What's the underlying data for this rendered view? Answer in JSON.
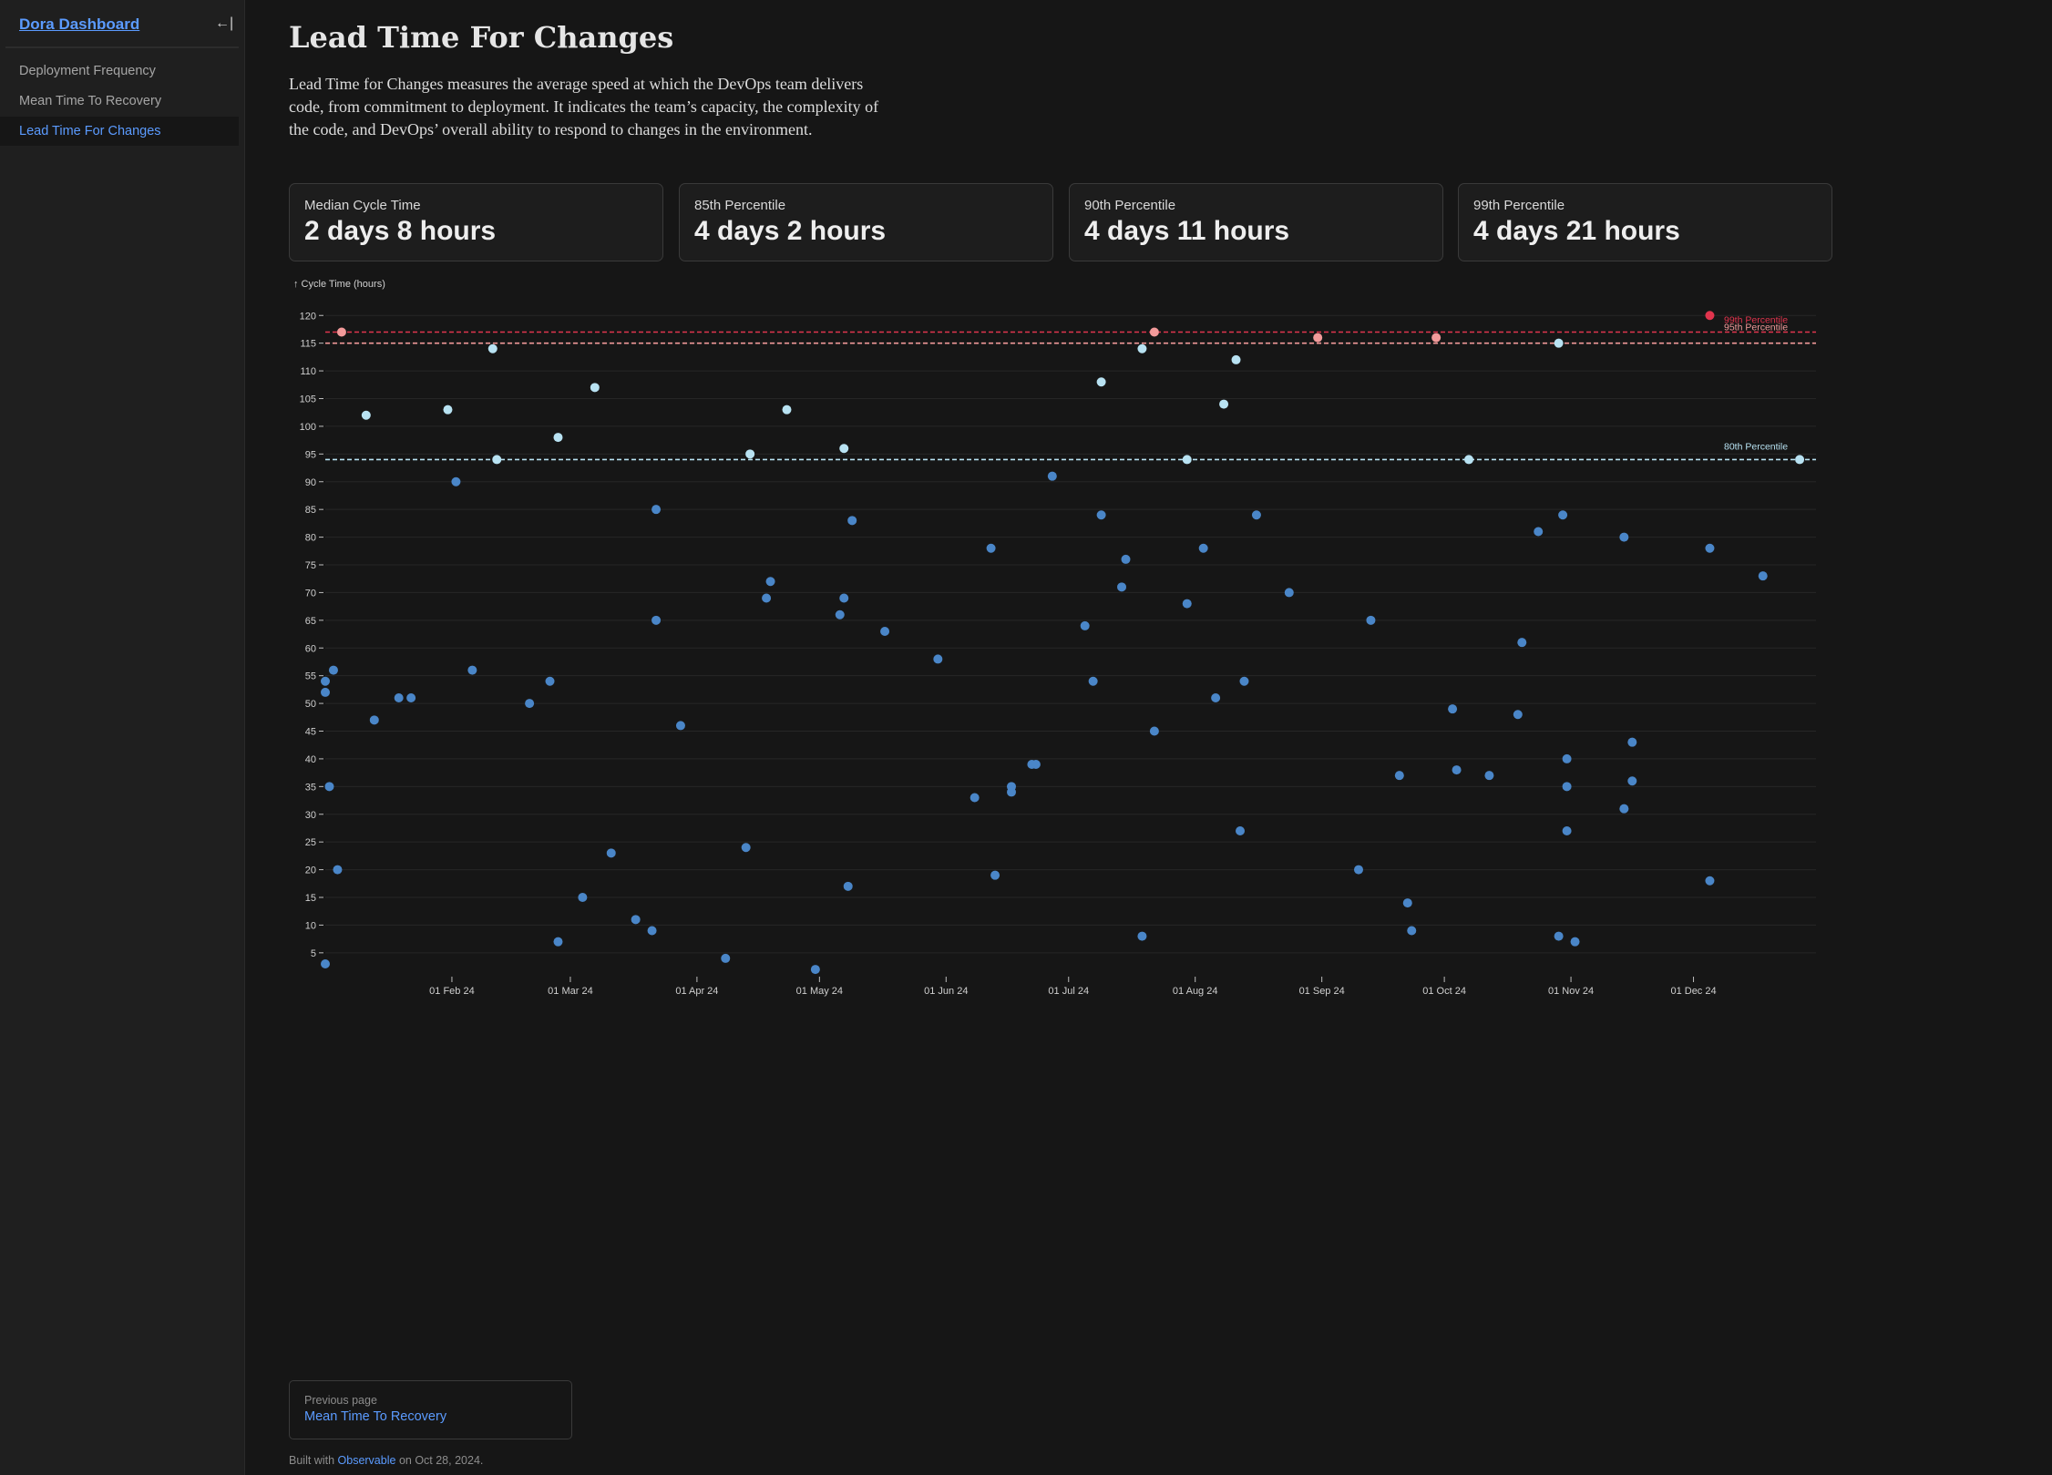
{
  "sidebar": {
    "brand": "Dora Dashboard",
    "collapse_icon": "←|",
    "items": [
      {
        "label": "Deployment Frequency",
        "active": false
      },
      {
        "label": "Mean Time To Recovery",
        "active": false
      },
      {
        "label": "Lead Time For Changes",
        "active": true
      }
    ]
  },
  "page": {
    "title": "Lead Time For Changes",
    "description": "Lead Time for Changes measures the average speed at which the DevOps team delivers code, from commitment to deployment. It indicates the team’s capacity, the complexity of the code, and DevOps’ overall ability to respond to changes in the environment."
  },
  "cards": [
    {
      "label": "Median Cycle Time",
      "value": "2 days 8 hours"
    },
    {
      "label": "85th Percentile",
      "value": "4 days 2 hours"
    },
    {
      "label": "90th Percentile",
      "value": "4 days 11 hours"
    },
    {
      "label": "99th Percentile",
      "value": "4 days 21 hours"
    }
  ],
  "chart_data": {
    "type": "scatter",
    "ylabel": "↑ Cycle Time (hours)",
    "xlabel": "",
    "xlim": [
      "2024-01-01",
      "2024-12-31"
    ],
    "ylim": [
      3,
      123
    ],
    "yticks": [
      5,
      10,
      15,
      20,
      25,
      30,
      35,
      40,
      45,
      50,
      55,
      60,
      65,
      70,
      75,
      80,
      85,
      90,
      95,
      100,
      105,
      110,
      115,
      120
    ],
    "xticks": [
      {
        "date": "2024-02-01",
        "label": "01 Feb 24"
      },
      {
        "date": "2024-03-01",
        "label": "01 Mar 24"
      },
      {
        "date": "2024-04-01",
        "label": "01 Apr 24"
      },
      {
        "date": "2024-05-01",
        "label": "01 May 24"
      },
      {
        "date": "2024-06-01",
        "label": "01 Jun 24"
      },
      {
        "date": "2024-07-01",
        "label": "01 Jul 24"
      },
      {
        "date": "2024-08-01",
        "label": "01 Aug 24"
      },
      {
        "date": "2024-09-01",
        "label": "01 Sep 24"
      },
      {
        "date": "2024-10-01",
        "label": "01 Oct 24"
      },
      {
        "date": "2024-11-01",
        "label": "01 Nov 24"
      },
      {
        "date": "2024-12-01",
        "label": "01 Dec 24"
      }
    ],
    "grid": true,
    "thresholds": [
      {
        "label": "99th Percentile",
        "y": 117,
        "color": "#e0344d"
      },
      {
        "label": "95th Percentile",
        "y": 115,
        "color": "#f29a9a"
      },
      {
        "label": "80th Percentile",
        "y": 94,
        "color": "#b8e2f2"
      }
    ],
    "colors": {
      "normal": "#4a86c8",
      "above_80th": "#b8e2f2",
      "above_95th": "#f29a9a",
      "above_99th": "#e0344d"
    },
    "points": [
      {
        "x": "2024-01-01",
        "y": 3
      },
      {
        "x": "2024-01-01",
        "y": 52
      },
      {
        "x": "2024-01-01",
        "y": 54
      },
      {
        "x": "2024-01-02",
        "y": 35
      },
      {
        "x": "2024-01-03",
        "y": 56
      },
      {
        "x": "2024-01-04",
        "y": 20
      },
      {
        "x": "2024-01-05",
        "y": 117
      },
      {
        "x": "2024-01-11",
        "y": 102
      },
      {
        "x": "2024-01-13",
        "y": 47
      },
      {
        "x": "2024-01-19",
        "y": 51
      },
      {
        "x": "2024-01-22",
        "y": 51
      },
      {
        "x": "2024-01-31",
        "y": 103
      },
      {
        "x": "2024-02-02",
        "y": 90
      },
      {
        "x": "2024-02-06",
        "y": 56
      },
      {
        "x": "2024-02-11",
        "y": 114
      },
      {
        "x": "2024-02-12",
        "y": 94
      },
      {
        "x": "2024-02-20",
        "y": 50
      },
      {
        "x": "2024-02-25",
        "y": 54
      },
      {
        "x": "2024-02-27",
        "y": 7
      },
      {
        "x": "2024-02-27",
        "y": 98
      },
      {
        "x": "2024-03-04",
        "y": 15
      },
      {
        "x": "2024-03-07",
        "y": 107
      },
      {
        "x": "2024-03-11",
        "y": 23
      },
      {
        "x": "2024-03-17",
        "y": 11
      },
      {
        "x": "2024-03-21",
        "y": 9
      },
      {
        "x": "2024-03-22",
        "y": 65
      },
      {
        "x": "2024-03-22",
        "y": 85
      },
      {
        "x": "2024-03-28",
        "y": 46
      },
      {
        "x": "2024-04-08",
        "y": 4
      },
      {
        "x": "2024-04-13",
        "y": 24
      },
      {
        "x": "2024-04-14",
        "y": 95
      },
      {
        "x": "2024-04-18",
        "y": 69
      },
      {
        "x": "2024-04-19",
        "y": 72
      },
      {
        "x": "2024-04-23",
        "y": 103
      },
      {
        "x": "2024-04-30",
        "y": 2
      },
      {
        "x": "2024-05-06",
        "y": 66
      },
      {
        "x": "2024-05-07",
        "y": 69
      },
      {
        "x": "2024-05-07",
        "y": 96
      },
      {
        "x": "2024-05-08",
        "y": 17
      },
      {
        "x": "2024-05-09",
        "y": 83
      },
      {
        "x": "2024-05-17",
        "y": 63
      },
      {
        "x": "2024-05-30",
        "y": 58
      },
      {
        "x": "2024-06-08",
        "y": 33
      },
      {
        "x": "2024-06-12",
        "y": 78
      },
      {
        "x": "2024-06-13",
        "y": 19
      },
      {
        "x": "2024-06-17",
        "y": 34
      },
      {
        "x": "2024-06-17",
        "y": 35
      },
      {
        "x": "2024-06-22",
        "y": 39
      },
      {
        "x": "2024-06-23",
        "y": 39
      },
      {
        "x": "2024-06-27",
        "y": 91
      },
      {
        "x": "2024-07-05",
        "y": 64
      },
      {
        "x": "2024-07-07",
        "y": 54
      },
      {
        "x": "2024-07-09",
        "y": 84
      },
      {
        "x": "2024-07-09",
        "y": 108
      },
      {
        "x": "2024-07-14",
        "y": 71
      },
      {
        "x": "2024-07-15",
        "y": 76
      },
      {
        "x": "2024-07-19",
        "y": 8
      },
      {
        "x": "2024-07-19",
        "y": 114
      },
      {
        "x": "2024-07-22",
        "y": 45
      },
      {
        "x": "2024-07-22",
        "y": 117
      },
      {
        "x": "2024-07-30",
        "y": 68
      },
      {
        "x": "2024-07-30",
        "y": 94
      },
      {
        "x": "2024-08-03",
        "y": 78
      },
      {
        "x": "2024-08-06",
        "y": 51
      },
      {
        "x": "2024-08-08",
        "y": 104
      },
      {
        "x": "2024-08-11",
        "y": 112
      },
      {
        "x": "2024-08-12",
        "y": 27
      },
      {
        "x": "2024-08-13",
        "y": 54
      },
      {
        "x": "2024-08-16",
        "y": 84
      },
      {
        "x": "2024-08-24",
        "y": 70
      },
      {
        "x": "2024-08-31",
        "y": 116
      },
      {
        "x": "2024-09-10",
        "y": 20
      },
      {
        "x": "2024-09-13",
        "y": 65
      },
      {
        "x": "2024-09-20",
        "y": 37
      },
      {
        "x": "2024-09-22",
        "y": 14
      },
      {
        "x": "2024-09-23",
        "y": 9
      },
      {
        "x": "2024-09-29",
        "y": 116
      },
      {
        "x": "2024-10-03",
        "y": 49
      },
      {
        "x": "2024-10-04",
        "y": 38
      },
      {
        "x": "2024-10-07",
        "y": 94
      },
      {
        "x": "2024-10-12",
        "y": 37
      },
      {
        "x": "2024-10-19",
        "y": 48
      },
      {
        "x": "2024-10-20",
        "y": 61
      },
      {
        "x": "2024-10-24",
        "y": 81
      },
      {
        "x": "2024-10-29",
        "y": 115
      },
      {
        "x": "2024-10-29",
        "y": 8
      },
      {
        "x": "2024-10-30",
        "y": 84
      },
      {
        "x": "2024-10-31",
        "y": 27
      },
      {
        "x": "2024-10-31",
        "y": 35
      },
      {
        "x": "2024-10-31",
        "y": 40
      },
      {
        "x": "2024-11-02",
        "y": 7
      },
      {
        "x": "2024-11-14",
        "y": 31
      },
      {
        "x": "2024-11-14",
        "y": 80
      },
      {
        "x": "2024-11-16",
        "y": 36
      },
      {
        "x": "2024-11-16",
        "y": 43
      },
      {
        "x": "2024-12-05",
        "y": 18
      },
      {
        "x": "2024-12-05",
        "y": 78
      },
      {
        "x": "2024-12-05",
        "y": 120
      },
      {
        "x": "2024-12-18",
        "y": 73
      },
      {
        "x": "2024-12-27",
        "y": 94
      }
    ]
  },
  "prev_page": {
    "label": "Previous page",
    "link": "Mean Time To Recovery"
  },
  "footer": {
    "prefix": "Built with",
    "link": "Observable",
    "suffix": "on Oct 28, 2024."
  }
}
